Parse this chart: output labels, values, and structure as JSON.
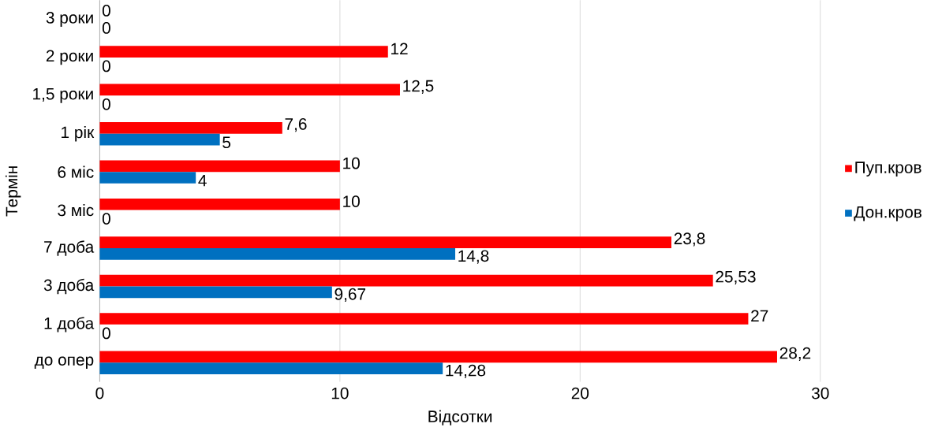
{
  "chart_data": {
    "type": "bar",
    "orientation": "horizontal",
    "xlabel": "Відсотки",
    "ylabel": "Термін",
    "categories": [
      "3 роки",
      "2 роки",
      "1,5 роки",
      "1 рік",
      "6 міс",
      "3 міс",
      "7 доба",
      "3 доба",
      "1 доба",
      "до опер"
    ],
    "series": [
      {
        "name": "Пуп.кров",
        "color": "#ff0000",
        "values": [
          0,
          12,
          12.5,
          7.6,
          10,
          10,
          23.8,
          25.53,
          27,
          28.2
        ],
        "value_labels": [
          "0",
          "12",
          "12,5",
          "7,6",
          "10",
          "10",
          "23,8",
          "25,53",
          "27",
          "28,2"
        ]
      },
      {
        "name": "Дон.кров",
        "color": "#0070c0",
        "values": [
          0,
          0,
          0,
          5,
          4,
          0,
          14.8,
          9.67,
          0,
          14.28
        ],
        "value_labels": [
          "0",
          "0",
          "0",
          "5",
          "4",
          "0",
          "14,8",
          "9,67",
          "0",
          "14,28"
        ]
      }
    ],
    "xlim": [
      0,
      30
    ],
    "xticks": [
      0,
      10,
      20,
      30
    ],
    "grid": "x",
    "legend": "right"
  }
}
